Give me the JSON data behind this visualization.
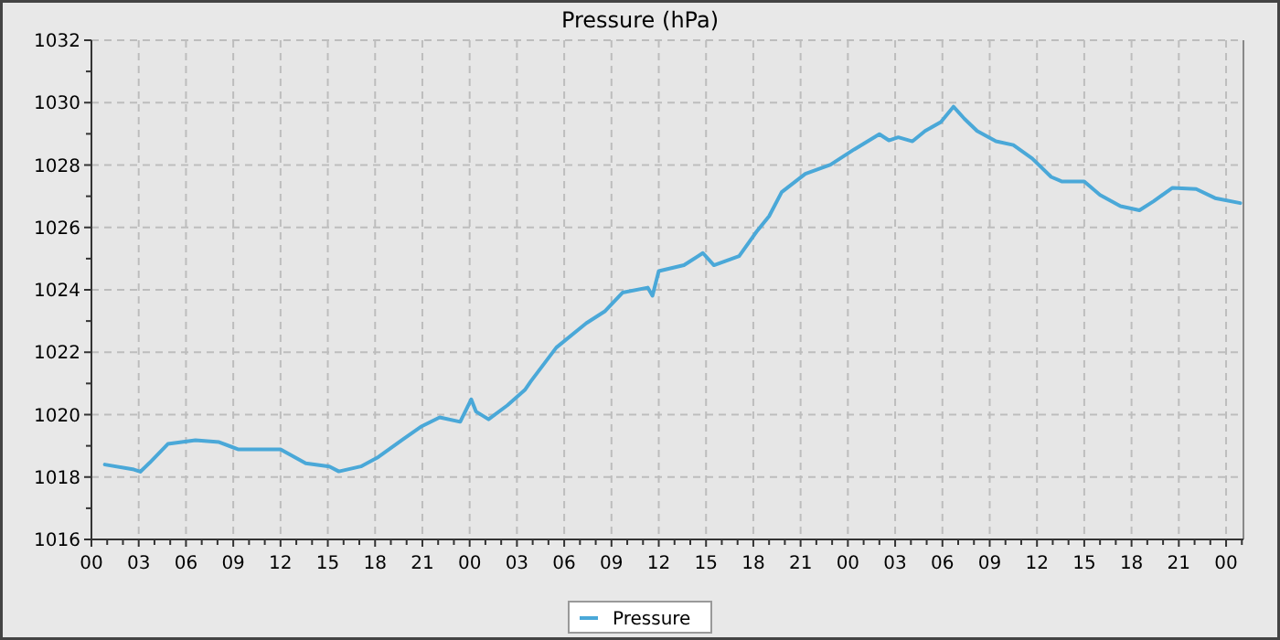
{
  "chart_data": {
    "type": "line",
    "title": "Pressure (hPa)",
    "xlim": [
      0,
      73.1
    ],
    "xticks": [
      {
        "value": 0,
        "label": "00"
      },
      {
        "value": 1,
        "label": null
      },
      {
        "value": 2,
        "label": null
      },
      {
        "value": 3,
        "label": "03"
      },
      {
        "value": 4,
        "label": null
      },
      {
        "value": 5,
        "label": null
      },
      {
        "value": 6,
        "label": "06"
      },
      {
        "value": 7,
        "label": null
      },
      {
        "value": 8,
        "label": null
      },
      {
        "value": 9,
        "label": "09"
      },
      {
        "value": 10,
        "label": null
      },
      {
        "value": 11,
        "label": null
      },
      {
        "value": 12,
        "label": "12"
      },
      {
        "value": 13,
        "label": null
      },
      {
        "value": 14,
        "label": null
      },
      {
        "value": 15,
        "label": "15"
      },
      {
        "value": 16,
        "label": null
      },
      {
        "value": 17,
        "label": null
      },
      {
        "value": 18,
        "label": "18"
      },
      {
        "value": 19,
        "label": null
      },
      {
        "value": 20,
        "label": null
      },
      {
        "value": 21,
        "label": "21"
      },
      {
        "value": 22,
        "label": null
      },
      {
        "value": 23,
        "label": null
      },
      {
        "value": 24,
        "label": "00"
      },
      {
        "value": 25,
        "label": null
      },
      {
        "value": 26,
        "label": null
      },
      {
        "value": 27,
        "label": "03"
      },
      {
        "value": 28,
        "label": null
      },
      {
        "value": 29,
        "label": null
      },
      {
        "value": 30,
        "label": "06"
      },
      {
        "value": 31,
        "label": null
      },
      {
        "value": 32,
        "label": null
      },
      {
        "value": 33,
        "label": "09"
      },
      {
        "value": 34,
        "label": null
      },
      {
        "value": 35,
        "label": null
      },
      {
        "value": 36,
        "label": "12"
      },
      {
        "value": 37,
        "label": null
      },
      {
        "value": 38,
        "label": null
      },
      {
        "value": 39,
        "label": "15"
      },
      {
        "value": 40,
        "label": null
      },
      {
        "value": 41,
        "label": null
      },
      {
        "value": 42,
        "label": "18"
      },
      {
        "value": 43,
        "label": null
      },
      {
        "value": 44,
        "label": null
      },
      {
        "value": 45,
        "label": "21"
      },
      {
        "value": 46,
        "label": null
      },
      {
        "value": 47,
        "label": null
      },
      {
        "value": 48,
        "label": "00"
      },
      {
        "value": 49,
        "label": null
      },
      {
        "value": 50,
        "label": null
      },
      {
        "value": 51,
        "label": "03"
      },
      {
        "value": 52,
        "label": null
      },
      {
        "value": 53,
        "label": null
      },
      {
        "value": 54,
        "label": "06"
      },
      {
        "value": 55,
        "label": null
      },
      {
        "value": 56,
        "label": null
      },
      {
        "value": 57,
        "label": "09"
      },
      {
        "value": 58,
        "label": null
      },
      {
        "value": 59,
        "label": null
      },
      {
        "value": 60,
        "label": "12"
      },
      {
        "value": 61,
        "label": null
      },
      {
        "value": 62,
        "label": null
      },
      {
        "value": 63,
        "label": "15"
      },
      {
        "value": 64,
        "label": null
      },
      {
        "value": 65,
        "label": null
      },
      {
        "value": 66,
        "label": "18"
      },
      {
        "value": 67,
        "label": null
      },
      {
        "value": 68,
        "label": null
      },
      {
        "value": 69,
        "label": "21"
      },
      {
        "value": 70,
        "label": null
      },
      {
        "value": 71,
        "label": null
      },
      {
        "value": 72,
        "label": "00"
      },
      {
        "value": 73,
        "label": null
      }
    ],
    "ylim": [
      1016,
      1032
    ],
    "yticks": [
      1016,
      {
        "value": 1017,
        "label": null
      },
      1018,
      {
        "value": 1019,
        "label": null
      },
      1020,
      {
        "value": 1021,
        "label": null
      },
      1022,
      {
        "value": 1023,
        "label": null
      },
      1024,
      {
        "value": 1025,
        "label": null
      },
      1026,
      {
        "value": 1027,
        "label": null
      },
      1028,
      {
        "value": 1029,
        "label": null
      },
      1030,
      {
        "value": 1031,
        "label": null
      },
      1032
    ],
    "grid": true,
    "legend": "bottom",
    "marker": "none",
    "line_style": "solid",
    "series": [
      {
        "name": "Pressure",
        "color": "#4aa8d8",
        "x": [
          0.85,
          2.7,
          3.1,
          3.7,
          4.85,
          6.6,
          8.1,
          9.3,
          12.0,
          13.6,
          15.1,
          15.7,
          17.1,
          18.2,
          19.8,
          20.9,
          22.1,
          23.4,
          24.1,
          24.4,
          25.2,
          26.4,
          27.5,
          27.9,
          29.5,
          31.4,
          32.6,
          33.7,
          35.3,
          35.6,
          36.0,
          37.6,
          38.8,
          39.5,
          41.1,
          42.2,
          43.0,
          43.8,
          45.3,
          46.9,
          48.4,
          50.0,
          50.6,
          51.2,
          52.1,
          52.9,
          53.9,
          54.7,
          55.4,
          56.2,
          57.4,
          58.5,
          59.7,
          60.9,
          61.6,
          63.0,
          64.0,
          65.3,
          66.5,
          67.4,
          68.6,
          70.1,
          71.3,
          72.9
        ],
        "values": [
          1018.4,
          1018.24,
          1018.17,
          1018.46,
          1019.06,
          1019.18,
          1019.12,
          1018.89,
          1018.89,
          1018.44,
          1018.34,
          1018.18,
          1018.34,
          1018.64,
          1019.22,
          1019.61,
          1019.91,
          1019.77,
          1020.49,
          1020.1,
          1019.85,
          1020.3,
          1020.79,
          1021.08,
          1022.15,
          1022.93,
          1023.32,
          1023.91,
          1024.07,
          1023.81,
          1024.6,
          1024.79,
          1025.18,
          1024.79,
          1025.08,
          1025.86,
          1026.36,
          1027.13,
          1027.72,
          1028.01,
          1028.5,
          1028.99,
          1028.79,
          1028.89,
          1028.76,
          1029.09,
          1029.38,
          1029.87,
          1029.48,
          1029.09,
          1028.76,
          1028.64,
          1028.21,
          1027.62,
          1027.47,
          1027.47,
          1027.04,
          1026.68,
          1026.55,
          1026.84,
          1027.27,
          1027.23,
          1026.94,
          1026.78
        ]
      }
    ]
  }
}
